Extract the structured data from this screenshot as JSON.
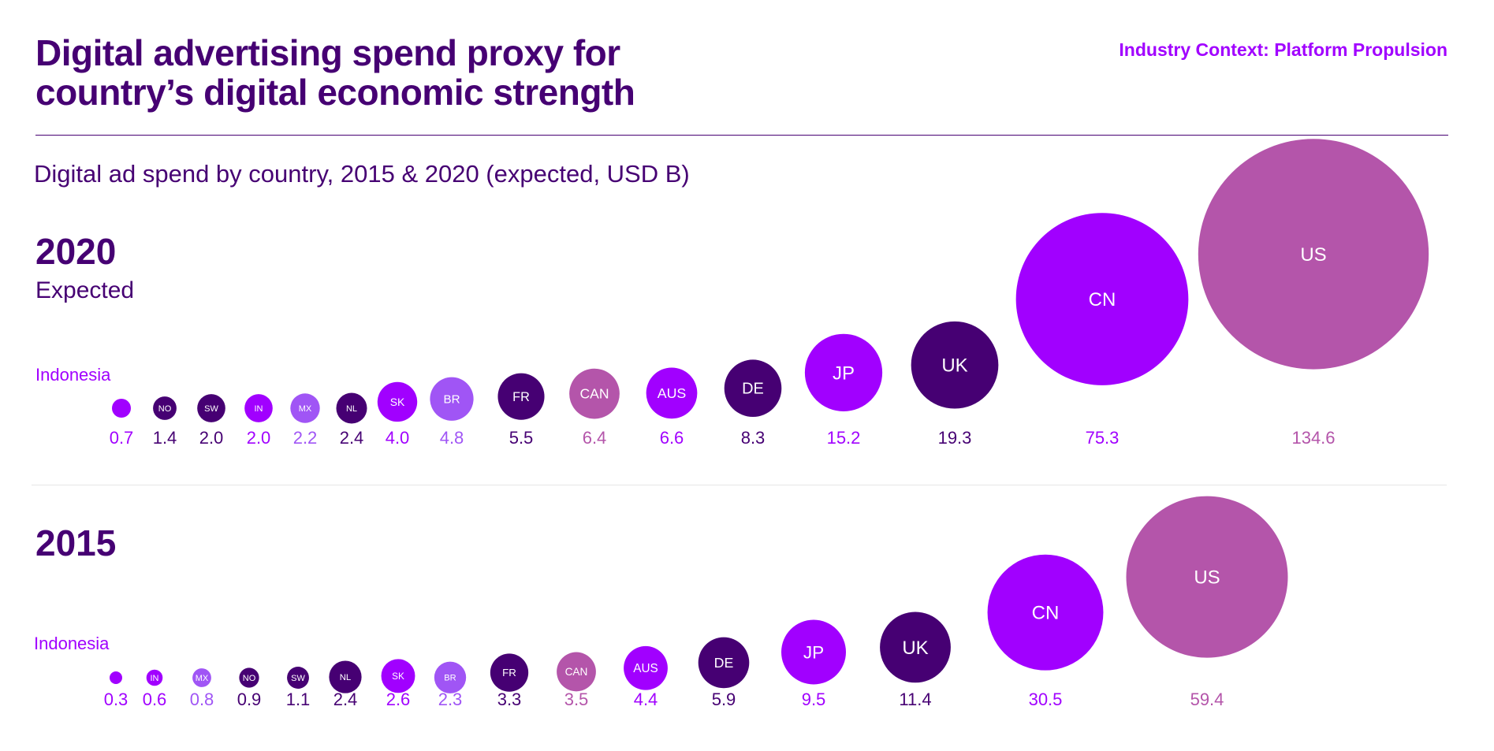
{
  "header": {
    "title_line1": "Digital advertising spend proxy for",
    "title_line2": "country’s digital economic strength",
    "context": "Industry Context: Platform Propulsion"
  },
  "subtitle": "Digital ad spend by country, 2015 & 2020 (expected, USD B)",
  "colors": {
    "dark_purple": "#460073",
    "purple": "#a100ff",
    "light_purple": "#a055f5",
    "mauve": "#b455aa"
  },
  "chart_data": [
    {
      "type": "bubble",
      "title": "2020",
      "subtitle": "Expected",
      "unit": "USD B",
      "first_label": "Indonesia",
      "points": [
        {
          "label": "",
          "value": 0.7,
          "color": "#a100ff"
        },
        {
          "label": "NO",
          "value": 1.4,
          "color": "#460073"
        },
        {
          "label": "SW",
          "value": 2.0,
          "color": "#460073"
        },
        {
          "label": "IN",
          "value": 2.0,
          "color": "#a100ff"
        },
        {
          "label": "MX",
          "value": 2.2,
          "color": "#a055f5"
        },
        {
          "label": "NL",
          "value": 2.4,
          "color": "#460073"
        },
        {
          "label": "SK",
          "value": 4.0,
          "color": "#a100ff"
        },
        {
          "label": "BR",
          "value": 4.8,
          "color": "#a055f5"
        },
        {
          "label": "FR",
          "value": 5.5,
          "color": "#460073"
        },
        {
          "label": "CAN",
          "value": 6.4,
          "color": "#b455aa"
        },
        {
          "label": "AUS",
          "value": 6.6,
          "color": "#a100ff"
        },
        {
          "label": "DE",
          "value": 8.3,
          "color": "#460073"
        },
        {
          "label": "JP",
          "value": 15.2,
          "color": "#a100ff"
        },
        {
          "label": "UK",
          "value": 19.3,
          "color": "#460073"
        },
        {
          "label": "CN",
          "value": 75.3,
          "color": "#a100ff"
        },
        {
          "label": "US",
          "value": 134.6,
          "color": "#b455aa"
        }
      ]
    },
    {
      "type": "bubble",
      "title": "2015",
      "subtitle": "",
      "unit": "USD B",
      "first_label": "Indonesia",
      "points": [
        {
          "label": "",
          "value": 0.3,
          "color": "#a100ff"
        },
        {
          "label": "IN",
          "value": 0.6,
          "color": "#a100ff"
        },
        {
          "label": "MX",
          "value": 0.8,
          "color": "#a055f5"
        },
        {
          "label": "NO",
          "value": 0.9,
          "color": "#460073"
        },
        {
          "label": "SW",
          "value": 1.1,
          "color": "#460073"
        },
        {
          "label": "NL",
          "value": 2.4,
          "color": "#460073"
        },
        {
          "label": "SK",
          "value": 2.6,
          "color": "#a100ff"
        },
        {
          "label": "BR",
          "value": 2.3,
          "color": "#a055f5"
        },
        {
          "label": "FR",
          "value": 3.3,
          "color": "#460073"
        },
        {
          "label": "CAN",
          "value": 3.5,
          "color": "#b455aa"
        },
        {
          "label": "AUS",
          "value": 4.4,
          "color": "#a100ff"
        },
        {
          "label": "DE",
          "value": 5.9,
          "color": "#460073"
        },
        {
          "label": "JP",
          "value": 9.5,
          "color": "#a100ff"
        },
        {
          "label": "UK",
          "value": 11.4,
          "color": "#460073"
        },
        {
          "label": "CN",
          "value": 30.5,
          "color": "#a100ff"
        },
        {
          "label": "US",
          "value": 59.4,
          "color": "#b455aa"
        }
      ]
    }
  ]
}
